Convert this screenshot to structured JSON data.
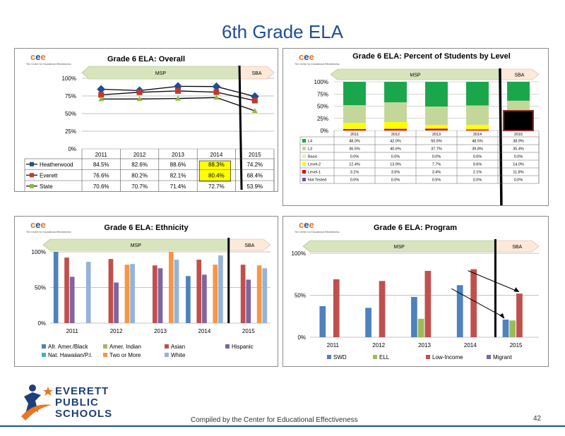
{
  "slide": {
    "title": "6th Grade ELA",
    "footer": "Compiled  by the Center for Educational Effectiveness",
    "page_number": "42",
    "logo_lines": [
      "EVERETT",
      "PUBLIC",
      "SCHOOLS"
    ],
    "cee_mark": "cee",
    "cee_subtitle": "The Center for Educational Effectiveness"
  },
  "colors": {
    "heatherwood": "#1f4e96",
    "everett": "#c0392b",
    "state": "#8dba3c",
    "l4": "#1aa64a",
    "l3": "#c4d79b",
    "basic": "#f5e6b0",
    "level2": "#ffff00",
    "level1": "#e00000",
    "not_tested": "#7b4fa0",
    "afr": "#4f81bd",
    "amer": "#9bbb59",
    "asian": "#c0504d",
    "hispanic": "#8064a2",
    "nat": "#4bacc6",
    "two": "#f79646",
    "white": "#95b3d7",
    "arrow_fill": "#d8e4bc",
    "sba_fill": "#fde9d9"
  },
  "chart_data": [
    {
      "type": "line",
      "title": "Grade 6 ELA: Overall",
      "categories": [
        "2011",
        "2012",
        "2013",
        "2014",
        "2015"
      ],
      "y_ticks": [
        "0%",
        "25%",
        "50%",
        "75%",
        "100%"
      ],
      "ylim": [
        0,
        100
      ],
      "band_labels": [
        "MSP",
        "SBA"
      ],
      "series": [
        {
          "name": "Heatherwood",
          "values": [
            84.5,
            82.6,
            88.6,
            88.3,
            74.2
          ],
          "labels": [
            "84.5%",
            "82.6%",
            "88.6%",
            "88.3%",
            "74.2%"
          ]
        },
        {
          "name": "Everett",
          "values": [
            76.6,
            80.2,
            82.1,
            80.4,
            68.4
          ],
          "labels": [
            "76.6%",
            "80.2%",
            "82.1%",
            "80.4%",
            "68.4%"
          ]
        },
        {
          "name": "State",
          "values": [
            70.6,
            70.7,
            71.4,
            72.7,
            53.9
          ],
          "labels": [
            "70.6%",
            "70.7%",
            "71.4%",
            "72.7%",
            "53.9%"
          ]
        }
      ]
    },
    {
      "type": "bar",
      "stacked": true,
      "title": "Grade 6 ELA: Percent of Students by Level",
      "categories": [
        "2011",
        "2012",
        "2013",
        "2014",
        "2015"
      ],
      "y_ticks": [
        "0%",
        "25%",
        "50%",
        "75%",
        "100%"
      ],
      "ylim": [
        0,
        100
      ],
      "band_labels": [
        "MSP",
        "SBA"
      ],
      "series": [
        {
          "name": "L4",
          "values": [
            48.0,
            42.0,
            50.6,
            48.5,
            38.9
          ],
          "labels": [
            "48.0%",
            "42.0%",
            "50.6%",
            "48.5%",
            "38.9%"
          ]
        },
        {
          "name": "L3",
          "values": [
            36.5,
            40.6,
            37.7,
            39.8,
            35.4
          ],
          "labels": [
            "36.5%",
            "40.6%",
            "37.7%",
            "39.8%",
            "35.4%"
          ]
        },
        {
          "name": "Basic",
          "values": [
            0,
            0,
            0,
            0,
            0
          ],
          "labels": [
            "0.0%",
            "0.0%",
            "0.0%",
            "0.0%",
            "0.0%"
          ]
        },
        {
          "name": "Level-2",
          "values": [
            12.4,
            13.9,
            7.7,
            9.6,
            14.0
          ],
          "labels": [
            "12.4%",
            "13.9%",
            "7.7%",
            "9.6%",
            "14.0%"
          ]
        },
        {
          "name": "Level-1",
          "values": [
            3.1,
            3.5,
            3.4,
            2.1,
            11.8
          ],
          "labels": [
            "3.1%",
            "3.5%",
            "3.4%",
            "2.1%",
            "11.8%"
          ]
        },
        {
          "name": "Not Tested",
          "values": [
            0,
            0,
            0.5,
            0,
            0
          ],
          "labels": [
            "0.0%",
            "0.0%",
            "0.5%",
            "0.0%",
            "0.0%"
          ]
        }
      ]
    },
    {
      "type": "bar",
      "title": "Grade 6 ELA: Ethnicity",
      "categories": [
        "2011",
        "2012",
        "2013",
        "2014",
        "2015"
      ],
      "y_ticks": [
        "0%",
        "50%",
        "100%"
      ],
      "ylim": [
        0,
        100
      ],
      "band_labels": [
        "MSP",
        "SBA"
      ],
      "series": [
        {
          "name": "Afr. Amer./Black",
          "values": [
            100,
            null,
            null,
            66,
            null
          ]
        },
        {
          "name": "Amer. Indian",
          "values": [
            null,
            null,
            null,
            null,
            null
          ]
        },
        {
          "name": "Asian",
          "values": [
            92,
            90,
            81,
            89,
            82
          ]
        },
        {
          "name": "Hispanic",
          "values": [
            65,
            57,
            77,
            68,
            61
          ]
        },
        {
          "name": "Nat. Hawaiian/P.I.",
          "values": [
            null,
            null,
            null,
            null,
            null
          ]
        },
        {
          "name": "Two or More",
          "values": [
            null,
            82,
            100,
            82,
            81
          ]
        },
        {
          "name": "White",
          "values": [
            86,
            83,
            89,
            95,
            77
          ]
        }
      ]
    },
    {
      "type": "bar",
      "title": "Grade 6 ELA: Program",
      "categories": [
        "2011",
        "2012",
        "2013",
        "2014",
        "2015"
      ],
      "y_ticks": [
        "0%",
        "50%",
        "100%"
      ],
      "ylim": [
        0,
        100
      ],
      "band_labels": [
        "MSP",
        "SBA"
      ],
      "series": [
        {
          "name": "SWD",
          "values": [
            37,
            35,
            48,
            62,
            21
          ]
        },
        {
          "name": "ELL",
          "values": [
            null,
            null,
            22,
            null,
            20
          ]
        },
        {
          "name": "Low-Income",
          "values": [
            69,
            67,
            79,
            81,
            52
          ]
        },
        {
          "name": "Migrant",
          "values": [
            null,
            null,
            null,
            null,
            null
          ]
        }
      ]
    }
  ]
}
